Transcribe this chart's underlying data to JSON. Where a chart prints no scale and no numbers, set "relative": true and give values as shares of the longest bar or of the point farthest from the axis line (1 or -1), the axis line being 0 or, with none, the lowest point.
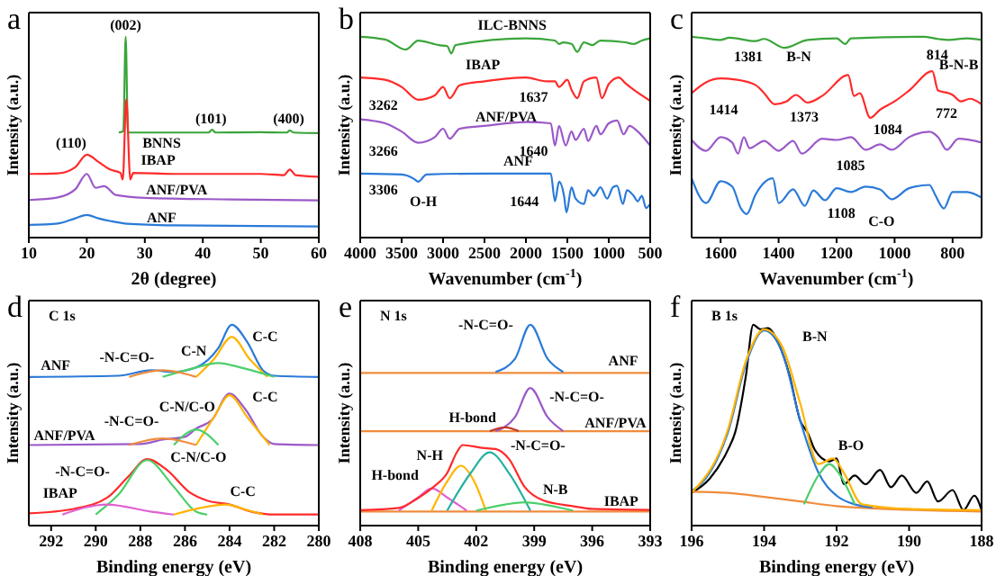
{
  "chart_data": [
    {
      "type": "line",
      "title": "a",
      "xlabel": "2θ (degree)",
      "ylabel": "Intensity (a.u.)",
      "relative": true,
      "xlim": [
        10,
        60
      ],
      "xticks": [
        10,
        20,
        30,
        40,
        50,
        60
      ],
      "series": [
        {
          "color": "#3aa53a",
          "x": [
            25.5,
            26.3,
            26.7,
            27.1,
            30,
            41,
            41.6,
            42.2,
            50,
            54.5,
            55,
            55.6,
            60
          ],
          "values": [
            0.523,
            0.53,
            1.0,
            0.523,
            0.523,
            0.523,
            0.537,
            0.523,
            0.525,
            0.523,
            0.534,
            0.523,
            0.52
          ]
        },
        {
          "color": "#ff2a2a",
          "x": [
            10,
            15,
            18,
            20,
            22,
            24,
            25.8,
            26.2,
            26.8,
            27.5,
            28,
            35,
            50,
            54,
            55,
            56,
            60
          ],
          "values": [
            0.317,
            0.32,
            0.35,
            0.413,
            0.377,
            0.339,
            0.322,
            0.289,
            0.689,
            0.289,
            0.322,
            0.317,
            0.317,
            0.311,
            0.339,
            0.311,
            0.303
          ]
        },
        {
          "color": "#9b59c8",
          "x": [
            10,
            15,
            18,
            20,
            21.5,
            23,
            25,
            30,
            45,
            60
          ],
          "values": [
            0.187,
            0.2,
            0.24,
            0.317,
            0.248,
            0.256,
            0.212,
            0.198,
            0.19,
            0.185
          ]
        },
        {
          "color": "#2a7ad8",
          "x": [
            10,
            15,
            18,
            20,
            22,
            24,
            27,
            35,
            60
          ],
          "values": [
            0.063,
            0.07,
            0.096,
            0.113,
            0.096,
            0.083,
            0.069,
            0.061,
            0.055
          ]
        }
      ],
      "annotations": [
        "(002)",
        "BNNS",
        "(101)",
        "(400)",
        "(110)",
        "IBAP",
        "ANF/PVA",
        "ANF"
      ]
    },
    {
      "type": "line",
      "title": "b",
      "xlabel": "Wavenumber (cm$^{-1}$)",
      "ylabel": "Intensity (a.u.)",
      "relative": true,
      "xlim": [
        4000,
        500
      ],
      "xticks": [
        4000,
        3500,
        3000,
        2500,
        2000,
        1500,
        1000,
        500
      ],
      "series": [
        {
          "color": "#3aa53a",
          "x": [
            4000,
            3700,
            3450,
            3300,
            3050,
            2950,
            2900,
            2850,
            2000,
            1650,
            1600,
            1550,
            1450,
            1380,
            1300,
            1200,
            1100,
            800,
            700,
            600,
            500
          ],
          "values": [
            1.0,
            0.986,
            0.936,
            0.981,
            0.958,
            0.953,
            0.917,
            0.958,
            0.992,
            0.981,
            0.964,
            0.972,
            0.964,
            0.925,
            0.972,
            0.958,
            0.981,
            0.972,
            0.964,
            0.981,
            0.992
          ]
        },
        {
          "color": "#ff2a2a",
          "x": [
            4000,
            3700,
            3500,
            3300,
            3100,
            3000,
            2920,
            2800,
            2500,
            2000,
            1750,
            1650,
            1600,
            1500,
            1450,
            1380,
            1300,
            1150,
            1084,
            1000,
            880,
            800,
            700,
            500
          ],
          "values": [
            0.797,
            0.786,
            0.75,
            0.686,
            0.708,
            0.75,
            0.694,
            0.758,
            0.778,
            0.797,
            0.778,
            0.778,
            0.75,
            0.786,
            0.736,
            0.694,
            0.778,
            0.797,
            0.694,
            0.764,
            0.797,
            0.769,
            0.736,
            0.681
          ]
        },
        {
          "color": "#9b59c8",
          "x": [
            4000,
            3700,
            3500,
            3300,
            3100,
            3000,
            2920,
            2800,
            2500,
            2000,
            1700,
            1650,
            1600,
            1520,
            1450,
            1400,
            1300,
            1250,
            1150,
            1100,
            1000,
            900,
            820,
            750,
            650,
            500
          ],
          "values": [
            0.589,
            0.569,
            0.528,
            0.472,
            0.5,
            0.542,
            0.492,
            0.542,
            0.556,
            0.575,
            0.569,
            0.458,
            0.556,
            0.458,
            0.528,
            0.486,
            0.542,
            0.481,
            0.556,
            0.514,
            0.569,
            0.583,
            0.514,
            0.556,
            0.528,
            0.458
          ]
        },
        {
          "color": "#2a7ad8",
          "x": [
            4000,
            3500,
            3350,
            3300,
            3200,
            2500,
            1700,
            1650,
            1600,
            1540,
            1510,
            1450,
            1400,
            1300,
            1250,
            1180,
            1100,
            1020,
            950,
            900,
            830,
            780,
            700,
            650,
            600,
            550,
            500
          ],
          "values": [
            0.319,
            0.314,
            0.292,
            0.278,
            0.314,
            0.319,
            0.319,
            0.181,
            0.278,
            0.208,
            0.125,
            0.25,
            0.194,
            0.167,
            0.236,
            0.208,
            0.25,
            0.194,
            0.25,
            0.258,
            0.167,
            0.236,
            0.208,
            0.181,
            0.208,
            0.147,
            0.167
          ]
        }
      ],
      "annotations": [
        "ILC-BNNS",
        "IBAP",
        "3262",
        "1637",
        "ANF/PVA",
        "3266",
        "1640",
        "ANF",
        "3306",
        "O-H",
        "1644"
      ]
    },
    {
      "type": "line",
      "title": "c",
      "xlabel": "Wavenumber (cm$^{-1}$)",
      "ylabel": "Intensity (a.u.)",
      "relative": true,
      "xlim": [
        1700,
        700
      ],
      "xticks": [
        1600,
        1400,
        1200,
        1000,
        800
      ],
      "series": [
        {
          "color": "#3aa53a",
          "x": [
            1700,
            1650,
            1600,
            1570,
            1480,
            1450,
            1381,
            1300,
            1200,
            1170,
            1150,
            900,
            850,
            814,
            750,
            700
          ],
          "values": [
            1.0,
            0.992,
            0.984,
            0.995,
            0.978,
            0.989,
            0.945,
            0.984,
            0.992,
            0.964,
            0.992,
            1.0,
            0.989,
            0.984,
            0.992,
            0.984
          ]
        },
        {
          "color": "#ff2a2a",
          "x": [
            1700,
            1650,
            1600,
            1550,
            1480,
            1450,
            1414,
            1373,
            1340,
            1300,
            1250,
            1160,
            1140,
            1120,
            1084,
            1050,
            1000,
            950,
            870,
            850,
            814,
            800,
            772,
            740,
            700
          ],
          "values": [
            0.719,
            0.773,
            0.792,
            0.787,
            0.76,
            0.719,
            0.664,
            0.678,
            0.71,
            0.672,
            0.705,
            0.809,
            0.705,
            0.719,
            0.596,
            0.637,
            0.678,
            0.732,
            0.828,
            0.732,
            0.719,
            0.71,
            0.678,
            0.691,
            0.664
          ]
        },
        {
          "color": "#9b59c8",
          "x": [
            1700,
            1650,
            1600,
            1560,
            1540,
            1520,
            1500,
            1450,
            1400,
            1350,
            1320,
            1250,
            1200,
            1150,
            1100,
            1050,
            1010,
            950,
            880,
            850,
            820,
            780,
            700
          ],
          "values": [
            0.486,
            0.432,
            0.5,
            0.473,
            0.418,
            0.5,
            0.445,
            0.481,
            0.432,
            0.481,
            0.418,
            0.492,
            0.486,
            0.5,
            0.437,
            0.464,
            0.437,
            0.5,
            0.527,
            0.5,
            0.437,
            0.492,
            0.473
          ]
        },
        {
          "color": "#2a7ad8",
          "x": [
            1700,
            1650,
            1600,
            1560,
            1530,
            1510,
            1480,
            1420,
            1400,
            1350,
            1310,
            1280,
            1240,
            1200,
            1150,
            1100,
            1050,
            1010,
            950,
            880,
            860,
            830,
            800,
            750,
            700
          ],
          "values": [
            0.295,
            0.172,
            0.281,
            0.254,
            0.145,
            0.117,
            0.213,
            0.295,
            0.172,
            0.24,
            0.158,
            0.235,
            0.186,
            0.246,
            0.227,
            0.254,
            0.24,
            0.191,
            0.246,
            0.262,
            0.213,
            0.145,
            0.227,
            0.227,
            0.199
          ]
        }
      ],
      "annotations": [
        "B-N",
        "1381",
        "814",
        "B-N-B",
        "1414",
        "1373",
        "1084",
        "772",
        "1085",
        "1108",
        "C-O"
      ]
    },
    {
      "type": "line",
      "title": "d",
      "subtitle": "C 1s",
      "xlabel": "Binding energy (eV)",
      "ylabel": "Intensity (a.u.)",
      "relative": true,
      "xlim": [
        293,
        280
      ],
      "xticks": [
        292,
        290,
        288,
        286,
        284,
        282,
        280
      ],
      "series": [
        {
          "color": "#2a7ad8",
          "x": [
            293,
            289,
            287.5,
            286.5,
            285.5,
            284.5,
            283.9,
            283.2,
            282.5,
            282,
            280
          ],
          "values": [
            0.74,
            0.746,
            0.773,
            0.765,
            0.787,
            0.884,
            1.0,
            0.912,
            0.773,
            0.746,
            0.74
          ]
        },
        {
          "color": "#ffb400",
          "x": [
            285.5,
            284.7,
            283.9,
            283.1,
            282.3
          ],
          "values": [
            0.74,
            0.829,
            0.939,
            0.829,
            0.74
          ]
        },
        {
          "color": "#4ccf6a",
          "x": [
            287,
            285.5,
            284.5,
            283.5,
            282
          ],
          "values": [
            0.74,
            0.787,
            0.809,
            0.787,
            0.74
          ]
        },
        {
          "color": "#f08c3c",
          "x": [
            288.5,
            287,
            285.5
          ],
          "values": [
            0.74,
            0.773,
            0.74
          ]
        },
        {
          "color": "#9b59c8",
          "x": [
            293,
            288,
            287,
            286,
            285.5,
            284.8,
            284,
            283.3,
            282.5,
            282,
            280
          ],
          "values": [
            0.401,
            0.406,
            0.428,
            0.442,
            0.483,
            0.525,
            0.657,
            0.58,
            0.442,
            0.406,
            0.401
          ]
        },
        {
          "color": "#ffb400",
          "x": [
            285.5,
            284.7,
            284,
            283.2,
            282.2
          ],
          "values": [
            0.401,
            0.539,
            0.649,
            0.539,
            0.401
          ]
        },
        {
          "color": "#4ccf6a",
          "x": [
            286.5,
            285.5,
            284.5
          ],
          "values": [
            0.401,
            0.478,
            0.401
          ]
        },
        {
          "color": "#f08c3c",
          "x": [
            288.5,
            287,
            285.5
          ],
          "values": [
            0.401,
            0.434,
            0.401
          ]
        },
        {
          "color": "#ff2a2a",
          "x": [
            293,
            291,
            289.5,
            288.5,
            287.7,
            286.8,
            285.8,
            285,
            284,
            283,
            282,
            280
          ],
          "values": [
            0.061,
            0.083,
            0.138,
            0.249,
            0.331,
            0.276,
            0.166,
            0.124,
            0.105,
            0.069,
            0.055,
            0.055
          ]
        },
        {
          "color": "#4ccf6a",
          "x": [
            290,
            289,
            287.7,
            286.5,
            285.5,
            285
          ],
          "values": [
            0.055,
            0.152,
            0.326,
            0.193,
            0.069,
            0.055
          ]
        },
        {
          "color": "#e060d0",
          "x": [
            291.5,
            289.5,
            287.5,
            286.5
          ],
          "values": [
            0.055,
            0.105,
            0.069,
            0.055
          ]
        },
        {
          "color": "#ffb400",
          "x": [
            286.5,
            285.3,
            284.2,
            283.2,
            282.5
          ],
          "values": [
            0.055,
            0.088,
            0.105,
            0.077,
            0.055
          ]
        }
      ],
      "annotations": [
        "ANF",
        "-N-C=O-",
        "C-N",
        "C-C",
        "ANF/PVA",
        "-N-C=O-",
        "C-N/C-O",
        "C-C",
        "-N-C=O-",
        "IBAP",
        "C-N/C-O",
        "C-C"
      ]
    },
    {
      "type": "line",
      "title": "e",
      "subtitle": "N 1s",
      "xlabel": "Binding energy (eV)",
      "ylabel": "Intensity (a.u.)",
      "relative": true,
      "xlim": [
        408,
        393
      ],
      "xticks": [
        408,
        405,
        402,
        399,
        396,
        393
      ],
      "series": [
        {
          "color": "#f08c3c",
          "x": [
            408,
            393
          ],
          "values": [
            0.76,
            0.76
          ]
        },
        {
          "color": "#2a7ad8",
          "x": [
            401,
            400,
            399.2,
            398.3,
            397.5
          ],
          "values": [
            0.765,
            0.829,
            1.0,
            0.829,
            0.765
          ]
        },
        {
          "color": "#f08c3c",
          "x": [
            408,
            393
          ],
          "values": [
            0.47,
            0.47
          ]
        },
        {
          "color": "#9b59c8",
          "x": [
            401,
            400,
            399.2,
            398.3,
            397.5
          ],
          "values": [
            0.47,
            0.539,
            0.685,
            0.539,
            0.47
          ]
        },
        {
          "color": "#c0392b",
          "x": [
            401.3,
            400.5,
            399.8
          ],
          "values": [
            0.47,
            0.489,
            0.47
          ]
        },
        {
          "color": "#f08c3c",
          "x": [
            408,
            393
          ],
          "values": [
            0.07,
            0.07
          ]
        },
        {
          "color": "#e060d0",
          "x": [
            406,
            405,
            404.3,
            403.5,
            402.5
          ],
          "values": [
            0.075,
            0.14,
            0.185,
            0.14,
            0.075
          ]
        },
        {
          "color": "#ffb400",
          "x": [
            404.3,
            403.5,
            402.8,
            402.1,
            401.5
          ],
          "values": [
            0.075,
            0.22,
            0.298,
            0.22,
            0.075
          ]
        },
        {
          "color": "#26b0a0",
          "x": [
            403.5,
            402.3,
            401.3,
            400.3,
            399.2
          ],
          "values": [
            0.075,
            0.26,
            0.365,
            0.26,
            0.075
          ]
        },
        {
          "color": "#4ccf6a",
          "x": [
            402,
            400.5,
            399.5,
            398.5,
            397
          ],
          "values": [
            0.075,
            0.105,
            0.116,
            0.105,
            0.075
          ]
        },
        {
          "color": "#ff2a2a",
          "x": [
            408,
            406,
            405,
            404.2,
            403.5,
            403,
            402.7,
            401.7,
            401,
            400.3,
            399.5,
            398.5,
            397,
            396,
            393
          ],
          "values": [
            0.077,
            0.088,
            0.138,
            0.193,
            0.262,
            0.365,
            0.401,
            0.387,
            0.381,
            0.331,
            0.193,
            0.124,
            0.097,
            0.083,
            0.078
          ]
        }
      ],
      "annotations": [
        "-N-C=O-",
        "ANF",
        "H-bond",
        "-N-C=O-",
        "ANF/PVA",
        "N-H",
        "-N-C=O-",
        "H-bond",
        "N-B",
        "IBAP"
      ]
    },
    {
      "type": "line",
      "title": "f",
      "subtitle": "B 1s",
      "xlabel": "Binding energy (eV)",
      "ylabel": "Intensity (a.u.)",
      "relative": true,
      "xlim": [
        196,
        188
      ],
      "xticks": [
        196,
        194,
        192,
        190,
        188
      ],
      "series": [
        {
          "color": "#000000",
          "x": [
            196,
            195.5,
            195,
            194.8,
            194.5,
            194.3,
            194.1,
            193.9,
            193.6,
            193.3,
            193,
            192.8,
            192.6,
            192.2,
            192,
            191.8,
            191.5,
            191.2,
            190.8,
            190.5,
            190.2,
            189.8,
            189.5,
            189.2,
            188.8,
            188.5,
            188.2,
            188
          ],
          "values": [
            0.163,
            0.234,
            0.377,
            0.463,
            0.749,
            1.0,
            0.977,
            0.983,
            0.906,
            0.749,
            0.52,
            0.463,
            0.377,
            0.32,
            0.334,
            0.206,
            0.249,
            0.206,
            0.277,
            0.191,
            0.249,
            0.163,
            0.22,
            0.12,
            0.177,
            0.077,
            0.149,
            0.077
          ]
        },
        {
          "color": "#f08c3c",
          "x": [
            196,
            195,
            194,
            193,
            192,
            191,
            188
          ],
          "values": [
            0.169,
            0.163,
            0.143,
            0.12,
            0.097,
            0.086,
            0.07
          ]
        },
        {
          "color": "#2a7ad8",
          "x": [
            196,
            195.5,
            195,
            194.5,
            194,
            193.5,
            193,
            192.5,
            192,
            191.5,
            191
          ],
          "values": [
            0.171,
            0.263,
            0.463,
            0.806,
            0.971,
            0.863,
            0.52,
            0.263,
            0.149,
            0.106,
            0.091
          ]
        },
        {
          "color": "#4ccf6a",
          "x": [
            192.9,
            192.5,
            192.2,
            191.9,
            191.5
          ],
          "values": [
            0.106,
            0.25,
            0.306,
            0.25,
            0.106
          ]
        },
        {
          "color": "#ffb400",
          "x": [
            196,
            195,
            194.5,
            194,
            193.5,
            193,
            192.5,
            192.1,
            191.8,
            191.3,
            190,
            188
          ],
          "values": [
            0.163,
            0.477,
            0.82,
            0.977,
            0.891,
            0.606,
            0.306,
            0.334,
            0.263,
            0.106,
            0.083,
            0.077
          ]
        }
      ],
      "annotations": [
        "B-N",
        "B-O"
      ]
    }
  ]
}
